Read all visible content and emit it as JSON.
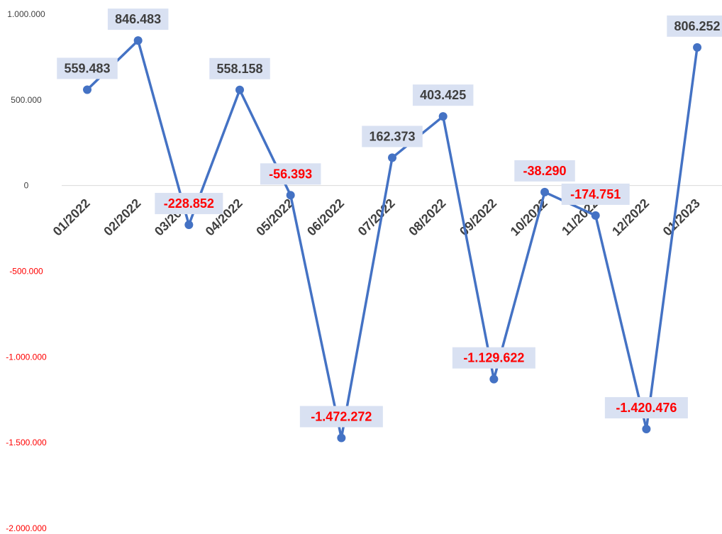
{
  "chart_data": {
    "type": "line",
    "title": "",
    "xlabel": "",
    "ylabel": "",
    "categories": [
      "01/2022",
      "02/2022",
      "03/2022",
      "04/2022",
      "05/2022",
      "06/2022",
      "07/2022",
      "08/2022",
      "09/2022",
      "10/2022",
      "11/2022",
      "12/2022",
      "01/2023"
    ],
    "series": [
      {
        "values": [
          559483,
          846483,
          -228852,
          558158,
          -56393,
          -1472272,
          162373,
          403425,
          -1129622,
          -38290,
          -174751,
          -1420476,
          806252
        ],
        "data_labels": [
          "559.483",
          "846.483",
          "-228.852",
          "558.158",
          "-56.393",
          "-1.472.272",
          "162.373",
          "403.425",
          "-1.129.622",
          "-38.290",
          "-174.751",
          "-1.420.476",
          "806.252"
        ],
        "color": "#4472c4"
      }
    ],
    "ylim": [
      -2000000,
      1000000
    ],
    "yticks": [
      1000000,
      500000,
      0,
      -500000,
      -1000000,
      -1500000,
      -2000000
    ],
    "ytick_labels": [
      "1.000.000",
      "500.000",
      "0",
      "-500.000",
      "-1.000.000",
      "-1.500.000",
      "-2.000.000"
    ],
    "grid": false,
    "legend": "none",
    "colors": {
      "line": "#4472c4",
      "positive_text": "#3f3f3f",
      "negative_text": "#ff0000",
      "label_background": "#d9e1f2",
      "axis": "#d9d9d9"
    }
  }
}
